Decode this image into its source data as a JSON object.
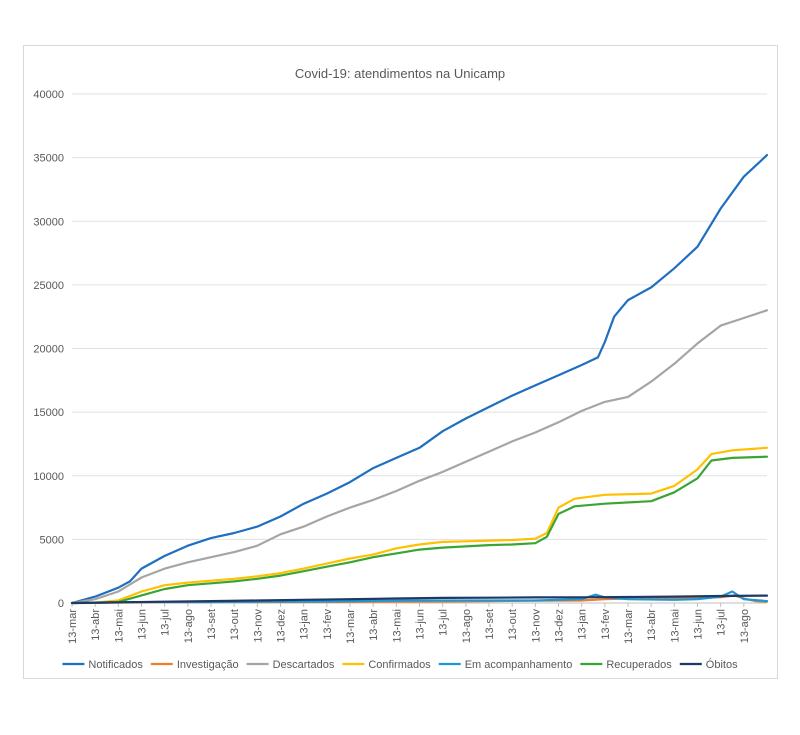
{
  "chart_data": {
    "type": "line",
    "title": "Covid-19: atendimentos  na Unicamp",
    "xlabel": "",
    "ylabel": "",
    "ylim": [
      0,
      40000
    ],
    "yticks": [
      0,
      5000,
      10000,
      15000,
      20000,
      25000,
      30000,
      35000,
      40000
    ],
    "grid": true,
    "legend_position": "bottom",
    "x_tick_labels": [
      "13-mar",
      "13-abr",
      "13-mai",
      "13-jun",
      "13-jul",
      "13-ago",
      "13-set",
      "13-out",
      "13-nov",
      "13-dez",
      "13-jan",
      "13-fev",
      "13-mar",
      "13-abr",
      "13-mai",
      "13-jun",
      "13-jul",
      "13-ago",
      "13-set",
      "13-out",
      "13-nov",
      "13-dez",
      "13-jan",
      "13-fev",
      "13-mar",
      "13-abr",
      "13-mai",
      "13-jun",
      "13-jul",
      "13-ago"
    ],
    "x_end": 30.0,
    "series": [
      {
        "name": "Notificados",
        "color": "#1f6fc1",
        "points": [
          [
            0,
            0
          ],
          [
            1,
            500
          ],
          [
            2,
            1200
          ],
          [
            2.5,
            1700
          ],
          [
            3,
            2700
          ],
          [
            4,
            3700
          ],
          [
            5,
            4500
          ],
          [
            6,
            5100
          ],
          [
            7,
            5500
          ],
          [
            8,
            6000
          ],
          [
            9,
            6800
          ],
          [
            10,
            7800
          ],
          [
            11,
            8600
          ],
          [
            12,
            9500
          ],
          [
            13,
            10600
          ],
          [
            14,
            11400
          ],
          [
            15,
            12200
          ],
          [
            16,
            13500
          ],
          [
            17,
            14500
          ],
          [
            18,
            15400
          ],
          [
            19,
            16300
          ],
          [
            20,
            17100
          ],
          [
            21,
            17900
          ],
          [
            22,
            18700
          ],
          [
            22.7,
            19300
          ],
          [
            23,
            20500
          ],
          [
            23.4,
            22500
          ],
          [
            24,
            23800
          ],
          [
            25,
            24800
          ],
          [
            26,
            26300
          ],
          [
            27,
            28000
          ],
          [
            28,
            31000
          ],
          [
            29,
            33500
          ],
          [
            30,
            35200
          ]
        ]
      },
      {
        "name": "Investigação",
        "color": "#ed7d31",
        "points": [
          [
            0,
            0
          ],
          [
            2,
            40
          ],
          [
            4,
            60
          ],
          [
            6,
            60
          ],
          [
            8,
            70
          ],
          [
            10,
            80
          ],
          [
            12,
            90
          ],
          [
            14,
            100
          ],
          [
            16,
            120
          ],
          [
            18,
            150
          ],
          [
            20,
            180
          ],
          [
            22,
            200
          ],
          [
            23,
            300
          ],
          [
            24,
            350
          ],
          [
            26,
            400
          ],
          [
            28,
            450
          ],
          [
            28.6,
            600
          ],
          [
            29,
            350
          ],
          [
            29.5,
            150
          ],
          [
            30,
            100
          ]
        ]
      },
      {
        "name": "Descartados",
        "color": "#a5a5a5",
        "points": [
          [
            0,
            0
          ],
          [
            1,
            300
          ],
          [
            2,
            900
          ],
          [
            3,
            2000
          ],
          [
            4,
            2700
          ],
          [
            5,
            3200
          ],
          [
            6,
            3600
          ],
          [
            7,
            4000
          ],
          [
            8,
            4500
          ],
          [
            9,
            5400
          ],
          [
            10,
            6000
          ],
          [
            11,
            6800
          ],
          [
            12,
            7500
          ],
          [
            13,
            8100
          ],
          [
            14,
            8800
          ],
          [
            15,
            9600
          ],
          [
            16,
            10300
          ],
          [
            17,
            11100
          ],
          [
            18,
            11900
          ],
          [
            19,
            12700
          ],
          [
            20,
            13400
          ],
          [
            21,
            14200
          ],
          [
            22,
            15100
          ],
          [
            23,
            15800
          ],
          [
            24,
            16200
          ],
          [
            25,
            17400
          ],
          [
            26,
            18800
          ],
          [
            27,
            20400
          ],
          [
            28,
            21800
          ],
          [
            29,
            22400
          ],
          [
            30,
            23000
          ]
        ]
      },
      {
        "name": "Confirmados",
        "color": "#ffc000",
        "points": [
          [
            0,
            0
          ],
          [
            1,
            30
          ],
          [
            2,
            200
          ],
          [
            3,
            900
          ],
          [
            4,
            1400
          ],
          [
            5,
            1600
          ],
          [
            6,
            1750
          ],
          [
            7,
            1900
          ],
          [
            8,
            2100
          ],
          [
            9,
            2350
          ],
          [
            10,
            2700
          ],
          [
            11,
            3100
          ],
          [
            12,
            3500
          ],
          [
            13,
            3800
          ],
          [
            14,
            4300
          ],
          [
            15,
            4600
          ],
          [
            16,
            4800
          ],
          [
            17,
            4850
          ],
          [
            18,
            4900
          ],
          [
            19,
            4950
          ],
          [
            20,
            5050
          ],
          [
            20.5,
            5500
          ],
          [
            21,
            7500
          ],
          [
            21.7,
            8200
          ],
          [
            23,
            8500
          ],
          [
            25,
            8600
          ],
          [
            26,
            9200
          ],
          [
            27,
            10500
          ],
          [
            27.6,
            11700
          ],
          [
            28.5,
            12000
          ],
          [
            30,
            12200
          ]
        ]
      },
      {
        "name": "Em acompanhamento",
        "color": "#1f97d4",
        "points": [
          [
            0,
            0
          ],
          [
            2,
            60
          ],
          [
            4,
            80
          ],
          [
            6,
            80
          ],
          [
            8,
            100
          ],
          [
            10,
            100
          ],
          [
            12,
            150
          ],
          [
            14,
            180
          ],
          [
            16,
            200
          ],
          [
            18,
            200
          ],
          [
            20,
            200
          ],
          [
            22,
            300
          ],
          [
            22.6,
            650
          ],
          [
            23,
            450
          ],
          [
            24,
            300
          ],
          [
            26,
            250
          ],
          [
            27,
            300
          ],
          [
            28,
            500
          ],
          [
            28.5,
            900
          ],
          [
            29,
            300
          ],
          [
            30,
            150
          ]
        ]
      },
      {
        "name": "Recuperados",
        "color": "#3aa532",
        "points": [
          [
            0,
            0
          ],
          [
            1,
            10
          ],
          [
            2,
            80
          ],
          [
            3,
            600
          ],
          [
            4,
            1100
          ],
          [
            5,
            1400
          ],
          [
            6,
            1550
          ],
          [
            7,
            1700
          ],
          [
            8,
            1900
          ],
          [
            9,
            2150
          ],
          [
            10,
            2500
          ],
          [
            11,
            2850
          ],
          [
            12,
            3200
          ],
          [
            13,
            3600
          ],
          [
            14,
            3900
          ],
          [
            15,
            4200
          ],
          [
            16,
            4350
          ],
          [
            17,
            4450
          ],
          [
            18,
            4550
          ],
          [
            19,
            4600
          ],
          [
            20,
            4700
          ],
          [
            20.5,
            5200
          ],
          [
            21,
            7000
          ],
          [
            21.7,
            7600
          ],
          [
            23,
            7800
          ],
          [
            25,
            8000
          ],
          [
            26,
            8700
          ],
          [
            27,
            9800
          ],
          [
            27.6,
            11200
          ],
          [
            28.5,
            11400
          ],
          [
            30,
            11500
          ]
        ]
      },
      {
        "name": "Óbitos",
        "color": "#1f3864",
        "points": [
          [
            0,
            0
          ],
          [
            2,
            50
          ],
          [
            4,
            100
          ],
          [
            6,
            150
          ],
          [
            8,
            200
          ],
          [
            10,
            250
          ],
          [
            12,
            300
          ],
          [
            14,
            350
          ],
          [
            16,
            400
          ],
          [
            18,
            420
          ],
          [
            20,
            440
          ],
          [
            22,
            450
          ],
          [
            24,
            470
          ],
          [
            26,
            500
          ],
          [
            28,
            550
          ],
          [
            30,
            580
          ]
        ]
      }
    ]
  }
}
